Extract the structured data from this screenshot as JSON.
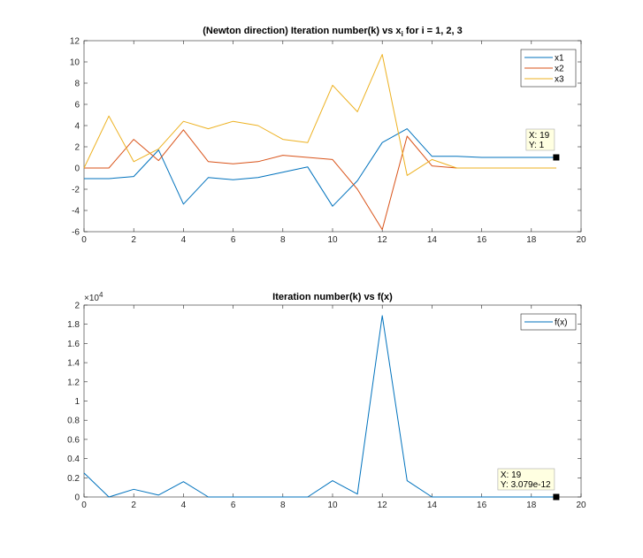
{
  "chart_data": [
    {
      "type": "line",
      "title": "(Newton direction) Iteration number(k) vs x",
      "title_sub": "i",
      "title_rest": " for i = 1, 2, 3",
      "xlabel": "",
      "ylabel": "",
      "xlim": [
        0,
        20
      ],
      "ylim": [
        -6,
        12
      ],
      "xticks": [
        0,
        2,
        4,
        6,
        8,
        10,
        12,
        14,
        16,
        18,
        20
      ],
      "yticks": [
        -6,
        -4,
        -2,
        0,
        2,
        4,
        6,
        8,
        10,
        12
      ],
      "grid": false,
      "legend_position": "top-right",
      "x": [
        0,
        1,
        2,
        3,
        4,
        5,
        6,
        7,
        8,
        9,
        10,
        11,
        12,
        13,
        14,
        15,
        16,
        17,
        18,
        19
      ],
      "series": [
        {
          "name": "x1",
          "color": "#0072BD",
          "values": [
            -1.0,
            -1.0,
            -0.8,
            1.7,
            -3.4,
            -0.9,
            -1.1,
            -0.9,
            -0.4,
            0.1,
            -3.6,
            -1.2,
            2.4,
            3.7,
            1.1,
            1.1,
            1.0,
            1.0,
            1.0,
            1.0
          ]
        },
        {
          "name": "x2",
          "color": "#D95319",
          "values": [
            0.0,
            0.0,
            2.7,
            0.7,
            3.6,
            0.6,
            0.4,
            0.6,
            1.2,
            1.0,
            0.8,
            -2.0,
            -5.8,
            3.0,
            0.2,
            0.0,
            0.0,
            0.0,
            0.0,
            0.0
          ]
        },
        {
          "name": "x3",
          "color": "#EDB120",
          "values": [
            0.0,
            4.9,
            0.6,
            1.8,
            4.4,
            3.7,
            4.4,
            4.0,
            2.7,
            2.4,
            7.8,
            5.3,
            10.7,
            -0.7,
            0.8,
            0.0,
            0.0,
            0.0,
            0.0,
            0.0
          ]
        }
      ],
      "datatip": {
        "x": 19,
        "y": 1,
        "x_label": "X: 19",
        "y_label": "Y: 1"
      }
    },
    {
      "type": "line",
      "title": "Iteration number(k) vs f(x)",
      "xlabel": "",
      "ylabel": "",
      "xlim": [
        0,
        20
      ],
      "ylim": [
        0,
        2
      ],
      "y_exponent_label": "×10",
      "y_exponent": "4",
      "xticks": [
        0,
        2,
        4,
        6,
        8,
        10,
        12,
        14,
        16,
        18,
        20
      ],
      "yticks": [
        0,
        0.2,
        0.4,
        0.6,
        0.8,
        1,
        1.2,
        1.4,
        1.6,
        1.8,
        2
      ],
      "grid": false,
      "legend_position": "top-right",
      "x": [
        0,
        1,
        2,
        3,
        4,
        5,
        6,
        7,
        8,
        9,
        10,
        11,
        12,
        13,
        14,
        15,
        16,
        17,
        18,
        19
      ],
      "series": [
        {
          "name": "f(x)",
          "color": "#0072BD",
          "values": [
            0.25,
            0.0,
            0.08,
            0.02,
            0.16,
            0.0,
            0.0,
            0.0,
            0.0,
            0.0,
            0.17,
            0.03,
            1.89,
            0.17,
            0.0,
            0.0,
            0.0,
            0.0,
            0.0,
            0.0
          ]
        }
      ],
      "datatip": {
        "x": 19,
        "y": 0,
        "x_label": "X: 19",
        "y_label": "Y: 3.079e-12"
      }
    }
  ]
}
